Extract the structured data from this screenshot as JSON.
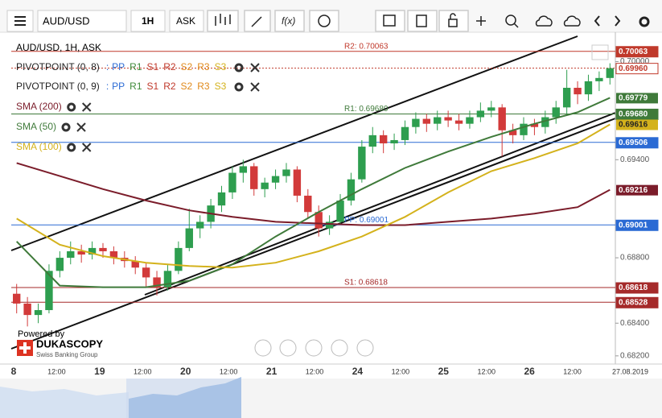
{
  "toolbar": {
    "instrument": "AUD/USD",
    "period": "1H",
    "side": "ASK"
  },
  "chart_data": {
    "type": "candlestick",
    "title": "AUD/USD, 1H, ASK",
    "up_color": "#2e9e4f",
    "down_color": "#d23a3a",
    "ylim": [
      0.6815,
      0.7018
    ],
    "yticks": [
      {
        "value": 0.682,
        "label": "0.68200"
      },
      {
        "value": 0.684,
        "label": "0.68400"
      },
      {
        "value": 0.688,
        "label": "0.68800"
      },
      {
        "value": 0.694,
        "label": "0.69400"
      },
      {
        "value": 0.7,
        "label": "0.70000"
      }
    ],
    "categories": [
      "8",
      "12:00",
      "19",
      "12:00",
      "20",
      "12:00",
      "21",
      "12:00",
      "24",
      "12:00",
      "25",
      "12:00",
      "26",
      "12:00",
      "27.08.2019"
    ],
    "ohlc": [
      [
        0.6858,
        0.6864,
        0.6846,
        0.6852
      ],
      [
        0.6852,
        0.6856,
        0.6838,
        0.6845
      ],
      [
        0.6845,
        0.6852,
        0.684,
        0.6848
      ],
      [
        0.6848,
        0.6876,
        0.6846,
        0.6872
      ],
      [
        0.6872,
        0.6884,
        0.6868,
        0.688
      ],
      [
        0.688,
        0.689,
        0.6876,
        0.6884
      ],
      [
        0.6884,
        0.6888,
        0.6877,
        0.6882
      ],
      [
        0.6882,
        0.689,
        0.6879,
        0.6886
      ],
      [
        0.6886,
        0.6889,
        0.688,
        0.6884
      ],
      [
        0.6884,
        0.6887,
        0.6876,
        0.688
      ],
      [
        0.688,
        0.6884,
        0.6874,
        0.6878
      ],
      [
        0.6878,
        0.6881,
        0.687,
        0.6874
      ],
      [
        0.6874,
        0.6877,
        0.6862,
        0.6868
      ],
      [
        0.6868,
        0.6872,
        0.6857,
        0.6862
      ],
      [
        0.6862,
        0.6876,
        0.686,
        0.6872
      ],
      [
        0.6872,
        0.689,
        0.687,
        0.6886
      ],
      [
        0.6886,
        0.691,
        0.6884,
        0.6898
      ],
      [
        0.6898,
        0.6906,
        0.6892,
        0.6902
      ],
      [
        0.6902,
        0.6916,
        0.6898,
        0.6912
      ],
      [
        0.6912,
        0.6924,
        0.6908,
        0.692
      ],
      [
        0.692,
        0.6936,
        0.6916,
        0.6932
      ],
      [
        0.6932,
        0.694,
        0.6926,
        0.6936
      ],
      [
        0.6936,
        0.6938,
        0.6918,
        0.6922
      ],
      [
        0.6922,
        0.6929,
        0.6917,
        0.6926
      ],
      [
        0.6926,
        0.6934,
        0.6922,
        0.693
      ],
      [
        0.693,
        0.6938,
        0.6926,
        0.6934
      ],
      [
        0.6934,
        0.6936,
        0.6914,
        0.6918
      ],
      [
        0.6918,
        0.6922,
        0.6904,
        0.6908
      ],
      [
        0.6908,
        0.6912,
        0.6893,
        0.6898
      ],
      [
        0.6898,
        0.6906,
        0.6894,
        0.6902
      ],
      [
        0.6902,
        0.6919,
        0.69,
        0.6915
      ],
      [
        0.6915,
        0.6932,
        0.6912,
        0.6928
      ],
      [
        0.6928,
        0.6952,
        0.6926,
        0.6948
      ],
      [
        0.6948,
        0.696,
        0.6944,
        0.6955
      ],
      [
        0.6955,
        0.6958,
        0.6944,
        0.695
      ],
      [
        0.695,
        0.6956,
        0.6946,
        0.6952
      ],
      [
        0.6952,
        0.6964,
        0.6949,
        0.696
      ],
      [
        0.696,
        0.6969,
        0.6956,
        0.6965
      ],
      [
        0.6965,
        0.6968,
        0.6957,
        0.6962
      ],
      [
        0.6962,
        0.697,
        0.6958,
        0.6966
      ],
      [
        0.6966,
        0.697,
        0.696,
        0.6964
      ],
      [
        0.6964,
        0.6968,
        0.6958,
        0.6962
      ],
      [
        0.6962,
        0.697,
        0.6959,
        0.6966
      ],
      [
        0.6966,
        0.6975,
        0.6963,
        0.697
      ],
      [
        0.697,
        0.6976,
        0.6966,
        0.6972
      ],
      [
        0.6972,
        0.6974,
        0.6942,
        0.6958
      ],
      [
        0.6958,
        0.6962,
        0.695,
        0.6955
      ],
      [
        0.6955,
        0.6966,
        0.6952,
        0.6962
      ],
      [
        0.6962,
        0.6965,
        0.6955,
        0.696
      ],
      [
        0.696,
        0.697,
        0.6956,
        0.6966
      ],
      [
        0.6966,
        0.6976,
        0.6962,
        0.6972
      ],
      [
        0.6972,
        0.6995,
        0.6968,
        0.6984
      ],
      [
        0.6984,
        0.6988,
        0.6974,
        0.698
      ],
      [
        0.698,
        0.6992,
        0.6976,
        0.6988
      ],
      [
        0.6988,
        0.6994,
        0.6982,
        0.699
      ],
      [
        0.699,
        0.6999,
        0.6986,
        0.6996
      ]
    ],
    "x": [
      0,
      4,
      8,
      12,
      16,
      20,
      24,
      28,
      32,
      36,
      40,
      44,
      48,
      52,
      55
    ],
    "series": [
      {
        "name": "SMA (200)",
        "color": "#7b1c2a",
        "values": [
          0.6938,
          0.693,
          0.6922,
          0.6915,
          0.6909,
          0.6905,
          0.6902,
          0.6901,
          0.69,
          0.69,
          0.6902,
          0.6904,
          0.6907,
          0.6911,
          0.69216
        ],
        "last_label": "0.69216",
        "badge_color": "#7b1c2a"
      },
      {
        "name": "SMA (50)",
        "color": "#3f7a3a",
        "values": [
          0.689,
          0.6863,
          0.6862,
          0.6862,
          0.6866,
          0.6876,
          0.6893,
          0.6908,
          0.6922,
          0.6935,
          0.6945,
          0.6954,
          0.6962,
          0.6969,
          0.69779
        ],
        "last_label": "0.69779",
        "badge_color": "#3f7a3a"
      },
      {
        "name": "SMA (100)",
        "color": "#d4b21c",
        "values": [
          0.6904,
          0.6888,
          0.6881,
          0.6877,
          0.6875,
          0.6874,
          0.6877,
          0.6884,
          0.6893,
          0.6905,
          0.692,
          0.6933,
          0.6941,
          0.695,
          0.69616
        ],
        "last_label": "0.69616",
        "badge_color": "#d4b21c"
      }
    ],
    "pivot_legends": [
      "PIVOTPOINT (0, 8)",
      "PIVOTPOINT (0, 9)"
    ],
    "pivot_items": [
      {
        "name": "PP",
        "color": "#2a6ad4"
      },
      {
        "name": "R1",
        "color": "#3f8a3a"
      },
      {
        "name": "S1",
        "color": "#c0392b"
      },
      {
        "name": "R2",
        "color": "#c0392b"
      },
      {
        "name": "S2",
        "color": "#e08a1c"
      },
      {
        "name": "R3",
        "color": "#e08a1c"
      },
      {
        "name": "S3",
        "color": "#d4b21c"
      }
    ],
    "pivot_prefix": ":",
    "levels": [
      {
        "value": 0.70063,
        "label": "R2: 0.70063",
        "badge": "0.70063",
        "color": "#c0392b"
      },
      {
        "value": 0.6996,
        "badge": "0.69960",
        "color": "#c0392b",
        "dashed": true
      },
      {
        "value": 0.6968,
        "label": "R1: 0.69680",
        "badge": "0.69680",
        "color": "#3f7a3a"
      },
      {
        "value": 0.69506,
        "badge": "0.69506",
        "color": "#2a6ad4"
      },
      {
        "value": 0.69001,
        "label": "PP: 0.69001",
        "badge": "0.69001",
        "color": "#2a6ad4"
      },
      {
        "value": 0.68618,
        "label": "S1: 0.68618",
        "badge": "0.68618",
        "color": "#a52a2a"
      },
      {
        "value": 0.68528,
        "badge": "0.68528",
        "color": "#a52a2a"
      }
    ],
    "grid": false
  },
  "branding": {
    "powered": "Powered by",
    "name": "DUKASCOPY",
    "tagline": "Swiss Banking Group"
  }
}
